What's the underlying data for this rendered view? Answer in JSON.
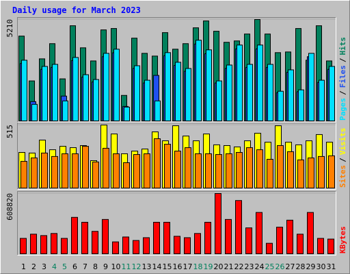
{
  "chart_data": [
    {
      "type": "bar",
      "title": "Daily usage for March 2023",
      "legend_separator": "/",
      "ylim": [
        0,
        5210
      ],
      "yticks": [
        5210
      ],
      "series": [
        {
          "name": "Hits",
          "color": "#00805c",
          "values": [
            4359,
            2056,
            3190,
            3970,
            2162,
            4891,
            3757,
            3083,
            4678,
            4749,
            1311,
            4253,
            3473,
            3332,
            4537,
            3686,
            3970,
            4785,
            5139,
            4608,
            4040,
            4111,
            4466,
            5210,
            4466,
            3509,
            3544,
            4749,
            3119,
            4891,
            3083
          ]
        },
        {
          "name": "Files",
          "color": "#2050f0",
          "values": [
            2950,
            992,
            2650,
            2750,
            1276,
            3100,
            2250,
            2000,
            3300,
            3500,
            744,
            2700,
            1950,
            2339,
            3350,
            2850,
            2550,
            3950,
            3450,
            1950,
            2700,
            3700,
            2750,
            3700,
            2750,
            1450,
            2500,
            1500,
            3300,
            1980,
            2650
          ]
        },
        {
          "name": "Pages",
          "color": "#00e0ff",
          "values": [
            3119,
            851,
            2800,
            2906,
            1028,
            3261,
            2375,
            2127,
            3473,
            3686,
            709,
            2835,
            2091,
            1028,
            3509,
            3013,
            2694,
            4147,
            3651,
            2056,
            2871,
            3899,
            2906,
            3899,
            2906,
            1524,
            2623,
            1595,
            3473,
            2091,
            2800
          ]
        }
      ]
    },
    {
      "type": "bar",
      "legend_separator": "/",
      "ylim": [
        0,
        515
      ],
      "yticks": [
        515
      ],
      "series": [
        {
          "name": "Visits",
          "color": "#ffff00",
          "values": [
            291,
            286,
            392,
            313,
            341,
            330,
            347,
            224,
            515,
            442,
            280,
            302,
            319,
            459,
            386,
            509,
            425,
            386,
            442,
            353,
            347,
            336,
            386,
            448,
            375,
            509,
            375,
            353,
            386,
            437,
            375
          ]
        },
        {
          "name": "Sites",
          "color": "#ff8000",
          "values": [
            218,
            246,
            286,
            258,
            280,
            280,
            341,
            213,
            325,
            280,
            207,
            274,
            280,
            403,
            358,
            302,
            330,
            280,
            280,
            274,
            280,
            291,
            330,
            313,
            235,
            347,
            297,
            230,
            246,
            258,
            263
          ]
        }
      ]
    },
    {
      "type": "bar",
      "ylim": [
        0,
        608820
      ],
      "yticks": [
        608820
      ],
      "categories": [
        "1",
        "2",
        "3",
        "4",
        "5",
        "6",
        "7",
        "8",
        "9",
        "10",
        "11",
        "12",
        "13",
        "14",
        "15",
        "16",
        "17",
        "18",
        "19",
        "20",
        "21",
        "22",
        "23",
        "24",
        "25",
        "26",
        "27",
        "28",
        "29",
        "30",
        "31"
      ],
      "category_colors": [
        "#000000",
        "#000000",
        "#000000",
        "#00805c",
        "#00805c",
        "#000000",
        "#000000",
        "#000000",
        "#000000",
        "#000000",
        "#00805c",
        "#00805c",
        "#000000",
        "#000000",
        "#000000",
        "#000000",
        "#000000",
        "#00805c",
        "#00805c",
        "#000000",
        "#000000",
        "#000000",
        "#000000",
        "#000000",
        "#00805c",
        "#00805c",
        "#000000",
        "#000000",
        "#000000",
        "#000000",
        "#000000"
      ],
      "series": [
        {
          "name": "KBytes",
          "color": "#ff0000",
          "values": [
            155744,
            198223,
            184064,
            205302,
            155744,
            368124,
            318569,
            226538,
            346886,
            120349,
            169904,
            134509,
            162824,
            318569,
            318569,
            176984,
            162824,
            205302,
            318569,
            608820,
            346886,
            538028,
            261935,
            417680,
            106189,
            269014,
            339806,
            198223,
            417680,
            155744,
            148664
          ]
        }
      ]
    }
  ]
}
